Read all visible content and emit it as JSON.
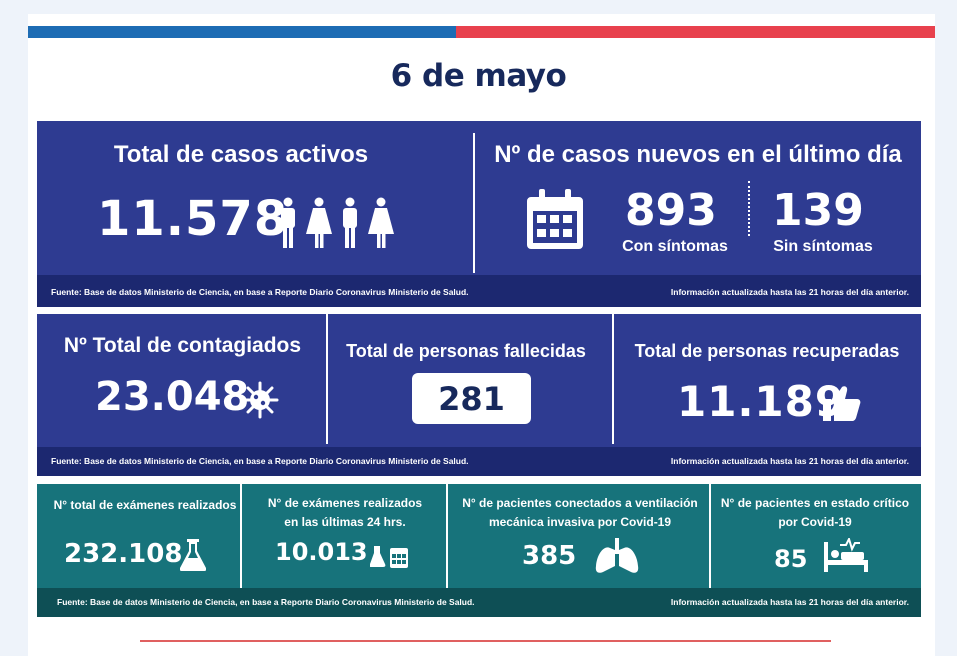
{
  "date": "6 de mayo",
  "footer": {
    "source": "Fuente: Base de datos Ministerio de Ciencia, en base a Reporte Diario Coronavirus Ministerio de Salud.",
    "updated": "Información actualizada hasta las 21 horas  del día anterior."
  },
  "active": {
    "title": "Total de casos activos",
    "value": "11.578",
    "icon": "people-icon"
  },
  "new_cases": {
    "title": "Nº de casos nuevos en el último día",
    "icon": "calendar-icon",
    "symptomatic": {
      "value": "893",
      "label": "Con síntomas"
    },
    "asymptomatic": {
      "value": "139",
      "label": "Sin síntomas"
    }
  },
  "infected": {
    "title": "Nº Total de contagiados",
    "value": "23.048",
    "icon": "virus-icon"
  },
  "deceased": {
    "title": "Total de personas fallecidas",
    "value": "281"
  },
  "recovered": {
    "title": "Total de personas recuperadas",
    "value": "11.189",
    "icon": "thumbs-up-icon"
  },
  "exams_total": {
    "title": "N° total de exámenes realizados",
    "value": "232.108",
    "icon": "flask-icon"
  },
  "exams_24h": {
    "title_line1": "N° de exámenes realizados",
    "title_line2": "en las últimas 24 hrs.",
    "value": "10.013",
    "icon": "flask-calendar-icon"
  },
  "ventilated": {
    "title_line1": "N° de pacientes conectados a ventilación",
    "title_line2": "mecánica invasiva por Covid-19",
    "value": "385",
    "icon": "lungs-icon"
  },
  "critical": {
    "title_line1": "N° de pacientes en estado crítico",
    "title_line2": "por Covid-19",
    "value": "85",
    "icon": "hospital-bed-icon"
  },
  "colors": {
    "blue_panel": "#2e3b91",
    "teal_panel": "#17737b",
    "flag_blue": "#1d6cb4",
    "flag_red": "#e8414d",
    "title": "#17295c"
  }
}
